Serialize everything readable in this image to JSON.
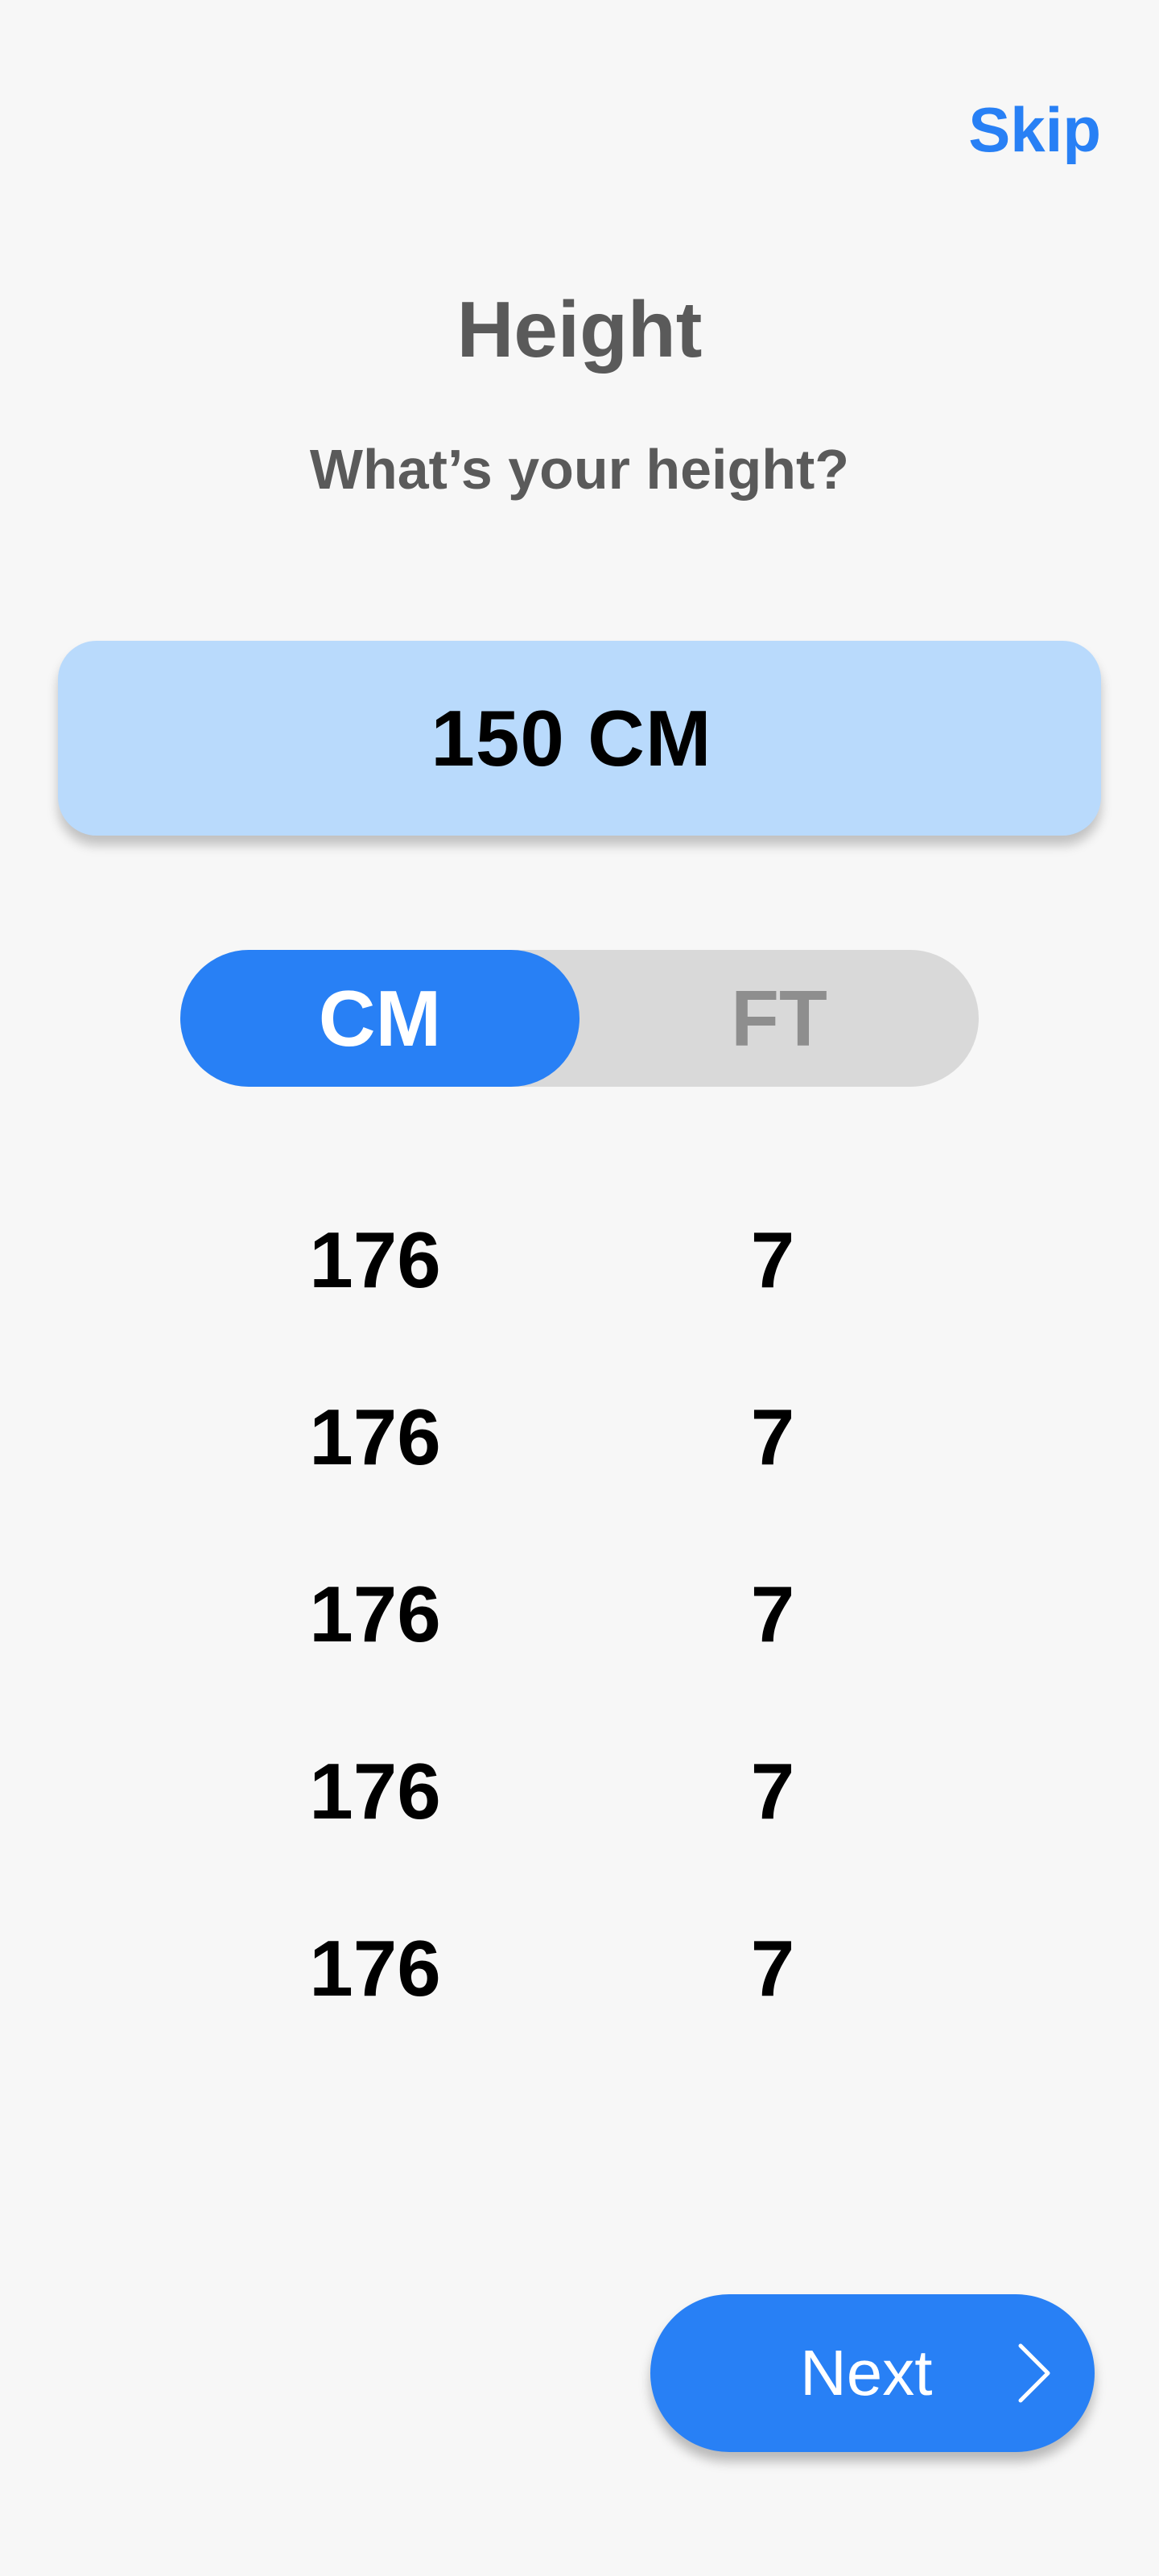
{
  "header": {
    "skip_label": "Skip",
    "title": "Height",
    "subtitle": "What’s your height?"
  },
  "selected_value": "150 CM",
  "unit_toggle": {
    "options": [
      "CM",
      "FT"
    ],
    "selected": "CM"
  },
  "picker": {
    "rows": [
      {
        "cm": "176",
        "ft": "7"
      },
      {
        "cm": "176",
        "ft": "7"
      },
      {
        "cm": "176",
        "ft": "7"
      },
      {
        "cm": "176",
        "ft": "7"
      },
      {
        "cm": "176",
        "ft": "7"
      }
    ]
  },
  "footer": {
    "next_label": "Next",
    "next_icon": "chevron-right-icon"
  },
  "colors": {
    "accent": "#2880f5",
    "value_box": "#b9dafc",
    "toggle_track": "#d9d9d9",
    "background": "#f7f7f7",
    "heading_text": "#5a5a5a"
  }
}
